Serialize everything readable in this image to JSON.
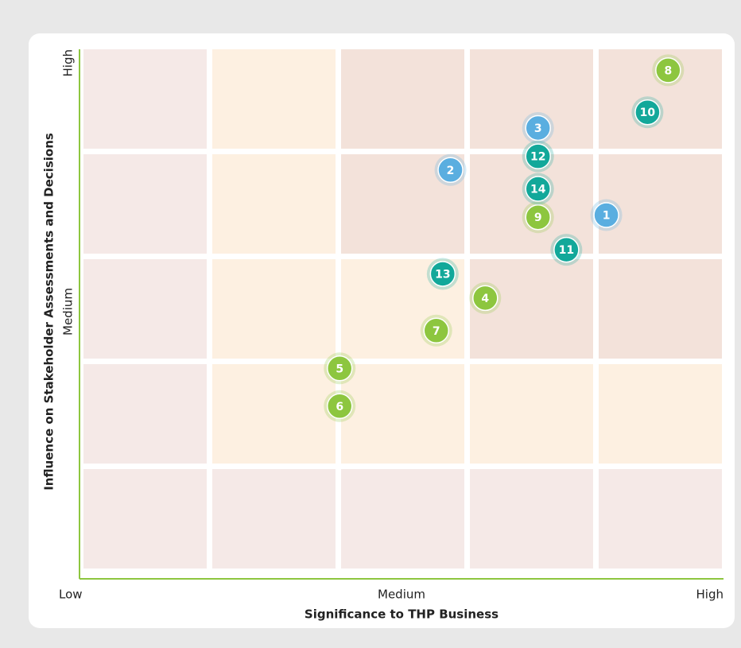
{
  "chart_data": {
    "type": "scatter",
    "xlabel": "Significance to THP Business",
    "ylabel": "Influence on Stakeholder Assessments and Decisions",
    "xlim": [
      0,
      5
    ],
    "ylim": [
      0,
      5
    ],
    "xticks": [
      {
        "value": 0,
        "label": "Low"
      },
      {
        "value": 2.5,
        "label": "Medium"
      },
      {
        "value": 5,
        "label": "High"
      }
    ],
    "yticks": [
      {
        "value": 2.5,
        "label": "Medium"
      },
      {
        "value": 5,
        "label": "High"
      }
    ],
    "points": [
      {
        "label": "1",
        "x": 4.09,
        "y": 3.42,
        "color": "#5aaee0"
      },
      {
        "label": "2",
        "x": 2.88,
        "y": 3.85,
        "color": "#5aaee0"
      },
      {
        "label": "3",
        "x": 3.56,
        "y": 4.25,
        "color": "#5aaee0"
      },
      {
        "label": "4",
        "x": 3.15,
        "y": 2.63,
        "color": "#8dc63f"
      },
      {
        "label": "5",
        "x": 2.02,
        "y": 1.96,
        "color": "#8dc63f"
      },
      {
        "label": "6",
        "x": 2.02,
        "y": 1.6,
        "color": "#8dc63f"
      },
      {
        "label": "7",
        "x": 2.77,
        "y": 2.32,
        "color": "#8dc63f"
      },
      {
        "label": "8",
        "x": 4.57,
        "y": 4.8,
        "color": "#8dc63f"
      },
      {
        "label": "9",
        "x": 3.56,
        "y": 3.4,
        "color": "#8dc63f"
      },
      {
        "label": "10",
        "x": 4.41,
        "y": 4.4,
        "color": "#12a89a"
      },
      {
        "label": "11",
        "x": 3.78,
        "y": 3.09,
        "color": "#12a89a"
      },
      {
        "label": "12",
        "x": 3.56,
        "y": 3.98,
        "color": "#12a89a"
      },
      {
        "label": "13",
        "x": 2.82,
        "y": 2.86,
        "color": "#12a89a"
      },
      {
        "label": "14",
        "x": 3.56,
        "y": 3.67,
        "color": "#12a89a"
      }
    ]
  }
}
